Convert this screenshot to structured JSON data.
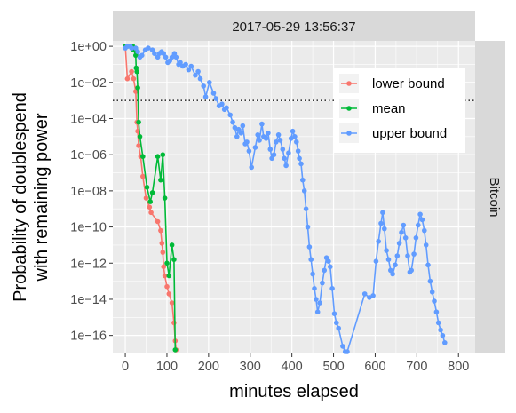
{
  "chart_data": {
    "type": "line",
    "facet_top": "2017-05-29 13:56:37",
    "facet_right": "Bitcoin",
    "xlabel": "minutes elapsed",
    "ylabel_lines": [
      "Probability of doublespend",
      "with remaining power"
    ],
    "xlim": [
      -30,
      840
    ],
    "ylog_lim": [
      -17,
      0.3
    ],
    "xticks": [
      0,
      100,
      200,
      300,
      400,
      500,
      600,
      700,
      800
    ],
    "xtick_labels": [
      "0",
      "100",
      "200",
      "300",
      "400",
      "500",
      "600",
      "700",
      "800"
    ],
    "yticks_log": [
      0,
      -2,
      -4,
      -6,
      -8,
      -10,
      -12,
      -14,
      -16
    ],
    "ytick_labels": [
      "1e+00",
      "1e−02",
      "1e−04",
      "1e−06",
      "1e−08",
      "1e−10",
      "1e−12",
      "1e−14",
      "1e−16"
    ],
    "threshold_log": -3,
    "grid": true,
    "legend_position": "top-right",
    "colors": {
      "panel_bg": "#ebebeb",
      "grid": "#ffffff",
      "strip_bg": "#d9d9d9",
      "lower": "#f8766d",
      "mean": "#00ba38",
      "upper": "#619cff"
    },
    "series": [
      {
        "name": "lower bound",
        "key": "lower",
        "points": [
          [
            0,
            0
          ],
          [
            5,
            -1.8
          ],
          [
            15,
            -1.4
          ],
          [
            20,
            -1.8
          ],
          [
            25,
            -2.5
          ],
          [
            28,
            -4.2
          ],
          [
            30,
            -4.7
          ],
          [
            32,
            -5.5
          ],
          [
            37,
            -6.1
          ],
          [
            42,
            -7.2
          ],
          [
            50,
            -8.4
          ],
          [
            58,
            -8.9
          ],
          [
            62,
            -9.2
          ],
          [
            78,
            -9.7
          ],
          [
            85,
            -10.2
          ],
          [
            88,
            -10.9
          ],
          [
            90,
            -11.4
          ],
          [
            92,
            -12.2
          ],
          [
            95,
            -12.7
          ],
          [
            100,
            -13.3
          ],
          [
            105,
            -13.7
          ],
          [
            112,
            -14.2
          ],
          [
            117,
            -15.3
          ],
          [
            120,
            -16.3
          ],
          [
            122,
            -16.8
          ]
        ]
      },
      {
        "name": "mean",
        "key": "mean",
        "points": [
          [
            0,
            0
          ],
          [
            5,
            0
          ],
          [
            12,
            0
          ],
          [
            15,
            0
          ],
          [
            18,
            0
          ],
          [
            20,
            -0.2
          ],
          [
            25,
            -0.5
          ],
          [
            26,
            -1.2
          ],
          [
            28,
            -1.4
          ],
          [
            30,
            -2.3
          ],
          [
            32,
            -4.2
          ],
          [
            35,
            -5.0
          ],
          [
            42,
            -6.1
          ],
          [
            52,
            -7.8
          ],
          [
            60,
            -8.6
          ],
          [
            65,
            -8.1
          ],
          [
            78,
            -6.1
          ],
          [
            85,
            -7.4
          ],
          [
            90,
            -6.0
          ],
          [
            95,
            -8.4
          ],
          [
            100,
            -12.0
          ],
          [
            105,
            -12.7
          ],
          [
            112,
            -11.0
          ],
          [
            117,
            -11.8
          ],
          [
            120,
            -16.8
          ]
        ]
      },
      {
        "name": "upper bound",
        "key": "upper",
        "points": [
          [
            0,
            -0.1
          ],
          [
            5,
            0
          ],
          [
            12,
            0
          ],
          [
            15,
            -0.1
          ],
          [
            25,
            -0.1
          ],
          [
            30,
            -0.3
          ],
          [
            35,
            -0.6
          ],
          [
            40,
            -0.5
          ],
          [
            48,
            -0.2
          ],
          [
            55,
            -0.1
          ],
          [
            65,
            -0.2
          ],
          [
            70,
            -0.4
          ],
          [
            78,
            -0.6
          ],
          [
            82,
            -0.4
          ],
          [
            87,
            -0.3
          ],
          [
            92,
            -0.4
          ],
          [
            97,
            -0.6
          ],
          [
            102,
            -0.9
          ],
          [
            107,
            -0.8
          ],
          [
            112,
            -0.6
          ],
          [
            118,
            -0.4
          ],
          [
            122,
            -0.6
          ],
          [
            128,
            -1.0
          ],
          [
            132,
            -0.9
          ],
          [
            138,
            -1.1
          ],
          [
            145,
            -1.0
          ],
          [
            152,
            -1.3
          ],
          [
            158,
            -1.1
          ],
          [
            168,
            -1.6
          ],
          [
            175,
            -1.4
          ],
          [
            180,
            -1.8
          ],
          [
            188,
            -2.2
          ],
          [
            193,
            -2.8
          ],
          [
            202,
            -2.0
          ],
          [
            212,
            -2.6
          ],
          [
            218,
            -2.9
          ],
          [
            225,
            -3.3
          ],
          [
            232,
            -3.2
          ],
          [
            238,
            -3.5
          ],
          [
            243,
            -3.4
          ],
          [
            252,
            -3.8
          ],
          [
            258,
            -4.2
          ],
          [
            263,
            -4.5
          ],
          [
            268,
            -5.0
          ],
          [
            272,
            -4.6
          ],
          [
            278,
            -4.8
          ],
          [
            282,
            -4.4
          ],
          [
            288,
            -5.4
          ],
          [
            292,
            -5.3
          ],
          [
            297,
            -5.8
          ],
          [
            303,
            -6.7
          ],
          [
            312,
            -5.6
          ],
          [
            318,
            -4.9
          ],
          [
            322,
            -5.2
          ],
          [
            328,
            -4.3
          ],
          [
            332,
            -5.0
          ],
          [
            338,
            -5.1
          ],
          [
            343,
            -4.8
          ],
          [
            348,
            -5.7
          ],
          [
            352,
            -6.2
          ],
          [
            357,
            -6.0
          ],
          [
            362,
            -5.3
          ],
          [
            368,
            -4.9
          ],
          [
            372,
            -5.2
          ],
          [
            378,
            -5.7
          ],
          [
            382,
            -6.2
          ],
          [
            386,
            -6.6
          ],
          [
            392,
            -5.9
          ],
          [
            398,
            -5.1
          ],
          [
            402,
            -4.7
          ],
          [
            407,
            -5.0
          ],
          [
            411,
            -5.3
          ],
          [
            415,
            -5.8
          ],
          [
            418,
            -6.2
          ],
          [
            422,
            -6.5
          ],
          [
            426,
            -7.4
          ],
          [
            430,
            -8.0
          ],
          [
            434,
            -9.0
          ],
          [
            438,
            -10.0
          ],
          [
            442,
            -11.1
          ],
          [
            446,
            -11.8
          ],
          [
            450,
            -12.6
          ],
          [
            454,
            -13.4
          ],
          [
            458,
            -14.0
          ],
          [
            462,
            -14.7
          ],
          [
            467,
            -14.2
          ],
          [
            473,
            -13.1
          ],
          [
            478,
            -12.4
          ],
          [
            483,
            -11.7
          ],
          [
            488,
            -11.9
          ],
          [
            492,
            -12.2
          ],
          [
            497,
            -13.4
          ],
          [
            502,
            -14.8
          ],
          [
            507,
            -15.3
          ],
          [
            512,
            -15.6
          ],
          [
            522,
            -16.6
          ],
          [
            528,
            -16.9
          ],
          [
            533,
            -16.9
          ],
          [
            575,
            -13.7
          ],
          [
            586,
            -13.9
          ],
          [
            595,
            -13.8
          ],
          [
            602,
            -11.9
          ],
          [
            608,
            -10.8
          ],
          [
            614,
            -9.8
          ],
          [
            618,
            -9.2
          ],
          [
            622,
            -10.1
          ],
          [
            627,
            -11.3
          ],
          [
            632,
            -11.8
          ],
          [
            637,
            -12.4
          ],
          [
            642,
            -12.6
          ],
          [
            648,
            -12.1
          ],
          [
            653,
            -11.6
          ],
          [
            658,
            -10.9
          ],
          [
            663,
            -10.3
          ],
          [
            668,
            -9.9
          ],
          [
            673,
            -10.6
          ],
          [
            678,
            -11.6
          ],
          [
            683,
            -12.5
          ],
          [
            687,
            -12.4
          ],
          [
            693,
            -11.5
          ],
          [
            698,
            -10.6
          ],
          [
            703,
            -9.9
          ],
          [
            708,
            -9.3
          ],
          [
            713,
            -9.6
          ],
          [
            718,
            -10.2
          ],
          [
            722,
            -11.0
          ],
          [
            727,
            -12.1
          ],
          [
            732,
            -13.0
          ],
          [
            737,
            -13.6
          ],
          [
            742,
            -14.1
          ],
          [
            747,
            -14.7
          ],
          [
            752,
            -15.3
          ],
          [
            757,
            -15.7
          ],
          [
            762,
            -16.0
          ],
          [
            767,
            -16.4
          ]
        ]
      }
    ]
  }
}
